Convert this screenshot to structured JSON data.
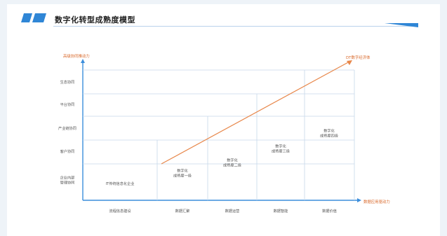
{
  "header": {
    "title": "数字化转型成熟度模型"
  },
  "colors": {
    "accent_blue": "#2f86d6",
    "grid_line": "#c7d8ea",
    "axis": "#3b8edc",
    "trend": "#e8874a",
    "axis_label": "#d9692b"
  },
  "diagram": {
    "y_axis_label": "高级协同推动力",
    "x_axis_label": "数据应用驱动力",
    "trend_label": "DT数字经济体",
    "rows": [
      "生态协同",
      "平台协同",
      "产业链协同",
      "客户协同",
      "企业内部\n管理协同"
    ],
    "columns": [
      "流程信息建设",
      "数据汇聚",
      "数据运营",
      "数据智能",
      "数据价值"
    ],
    "stages": [
      {
        "lines": [
          "IT传统信息化企业"
        ]
      },
      {
        "lines": [
          "数字化",
          "成熟度一级"
        ]
      },
      {
        "lines": [
          "数字化",
          "成熟度二级"
        ]
      },
      {
        "lines": [
          "数字化",
          "成熟度三级"
        ]
      },
      {
        "lines": [
          "数字化",
          "成熟度四级"
        ]
      }
    ]
  }
}
